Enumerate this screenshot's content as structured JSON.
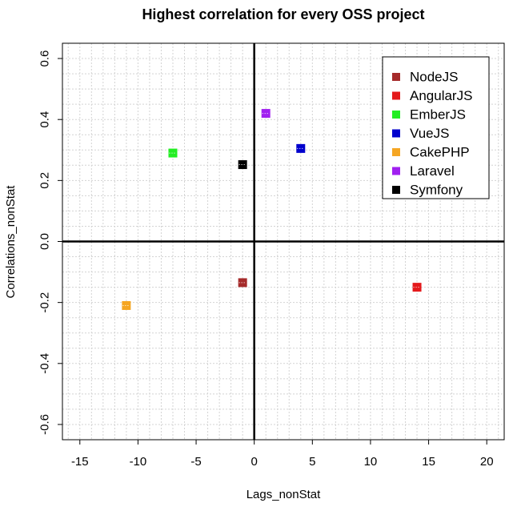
{
  "chart_data": {
    "type": "scatter",
    "title": "Highest correlation for every OSS project",
    "xlabel": "Lags_nonStat",
    "ylabel": "Correlations_nonStat",
    "xlim": [
      -16.5,
      21.5
    ],
    "ylim": [
      -0.65,
      0.65
    ],
    "x_ticks": [
      -15,
      -10,
      -5,
      0,
      5,
      10,
      15,
      20
    ],
    "x_tick_labels": [
      "-15",
      "-10",
      "-5",
      "0",
      "5",
      "10",
      "15",
      "20"
    ],
    "y_ticks": [
      -0.6,
      -0.4,
      -0.2,
      0.0,
      0.2,
      0.4,
      0.6
    ],
    "y_tick_labels": [
      "-0.6",
      "-0.4",
      "-0.2",
      "0.0",
      "0.2",
      "0.4",
      "0.6"
    ],
    "grid": true,
    "grid_step_x": 1,
    "grid_step_y": 0.05,
    "zero_lines": true,
    "legend_position": "top-right",
    "series": [
      {
        "name": "NodeJS",
        "color": "#a52a2a",
        "x": -1,
        "y": -0.135
      },
      {
        "name": "AngularJS",
        "color": "#e41a1c",
        "x": 14,
        "y": -0.15
      },
      {
        "name": "EmberJS",
        "color": "#22ee22",
        "x": -7,
        "y": 0.29
      },
      {
        "name": "VueJS",
        "color": "#0000cd",
        "x": 4,
        "y": 0.305
      },
      {
        "name": "CakePHP",
        "color": "#f5a623",
        "x": -11,
        "y": -0.21
      },
      {
        "name": "Laravel",
        "color": "#a020f0",
        "x": 1,
        "y": 0.42
      },
      {
        "name": "Symfony",
        "color": "#000000",
        "x": -1,
        "y": 0.252
      }
    ]
  }
}
